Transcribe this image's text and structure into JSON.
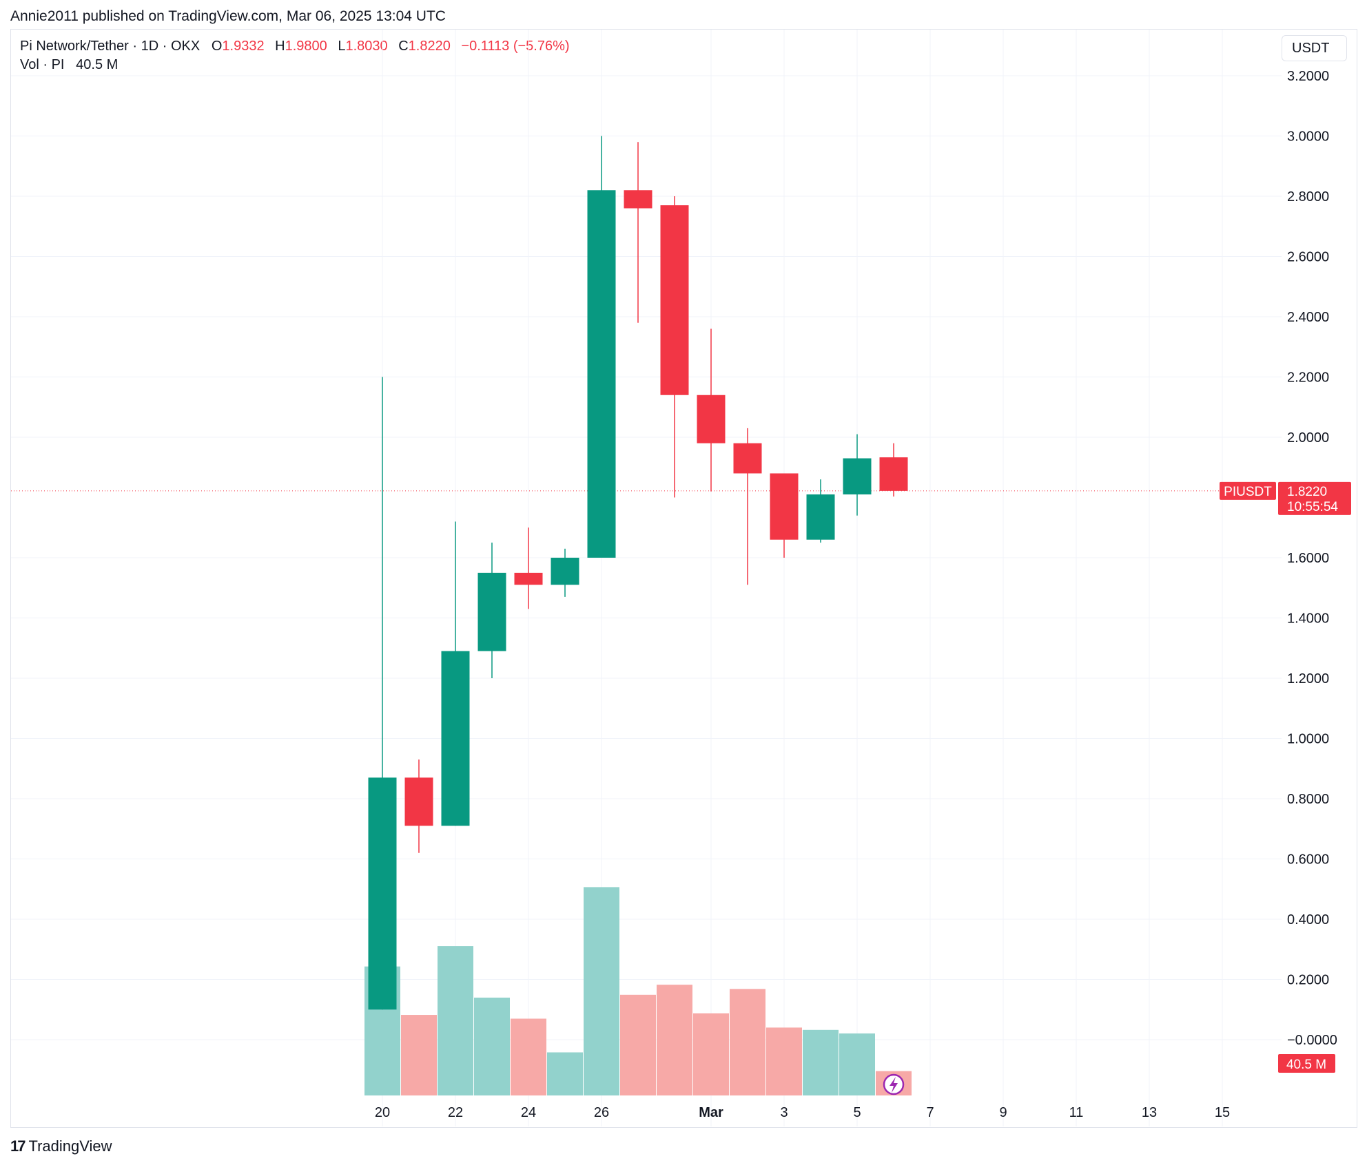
{
  "header": {
    "publish_line": "Annie2011 published on TradingView.com, Mar 06, 2025 13:04 UTC"
  },
  "legend": {
    "symbol_line": "Pi Network/Tether · 1D · OKX",
    "o_label": "O",
    "o_value": "1.9332",
    "h_label": "H",
    "h_value": "1.9800",
    "l_label": "L",
    "l_value": "1.8030",
    "c_label": "C",
    "c_value": "1.8220",
    "change": "−0.1113 (−5.76%)",
    "vol_label": "Vol · PI",
    "vol_value": "40.5 M"
  },
  "currency_button": "USDT",
  "footer": {
    "logo": "17",
    "brand": "TradingView"
  },
  "colors": {
    "up": "#089981",
    "down": "#f23645",
    "vol_up": "#92d2cc",
    "vol_down": "#f7a9a7",
    "grid": "#f0f3fa",
    "price_line": "#f23645"
  },
  "chart_data": {
    "type": "candlestick",
    "price_axis": {
      "ticks": [
        "3.2000",
        "3.0000",
        "2.8000",
        "2.6000",
        "2.4000",
        "2.2000",
        "2.0000",
        "1.6000",
        "1.4000",
        "1.2000",
        "1.0000",
        "0.8000",
        "0.6000",
        "0.4000",
        "0.2000",
        "−0.0000"
      ],
      "range": [
        -0.19,
        3.28
      ]
    },
    "time_axis": {
      "ticks": [
        "20",
        "22",
        "24",
        "26",
        "Mar",
        "3",
        "5",
        "7",
        "9",
        "11",
        "13",
        "15"
      ]
    },
    "candles": [
      {
        "date": "Feb 20",
        "open": 0.1,
        "high": 2.2,
        "low": 0.1,
        "close": 0.87
      },
      {
        "date": "Feb 21",
        "open": 0.87,
        "high": 0.93,
        "low": 0.62,
        "close": 0.71
      },
      {
        "date": "Feb 22",
        "open": 0.71,
        "high": 1.72,
        "low": 0.71,
        "close": 1.29
      },
      {
        "date": "Feb 23",
        "open": 1.29,
        "high": 1.65,
        "low": 1.2,
        "close": 1.55
      },
      {
        "date": "Feb 24",
        "open": 1.55,
        "high": 1.7,
        "low": 1.43,
        "close": 1.51
      },
      {
        "date": "Feb 25",
        "open": 1.51,
        "high": 1.63,
        "low": 1.47,
        "close": 1.6
      },
      {
        "date": "Feb 26",
        "open": 1.6,
        "high": 3.0,
        "low": 1.6,
        "close": 2.82
      },
      {
        "date": "Feb 27",
        "open": 2.82,
        "high": 2.98,
        "low": 2.38,
        "close": 2.76
      },
      {
        "date": "Feb 28",
        "open": 2.77,
        "high": 2.8,
        "low": 1.8,
        "close": 2.14
      },
      {
        "date": "Mar 1",
        "open": 2.14,
        "high": 2.36,
        "low": 1.82,
        "close": 1.98
      },
      {
        "date": "Mar 2",
        "open": 1.98,
        "high": 2.03,
        "low": 1.51,
        "close": 1.88
      },
      {
        "date": "Mar 3",
        "open": 1.88,
        "high": 1.88,
        "low": 1.6,
        "close": 1.66
      },
      {
        "date": "Mar 4",
        "open": 1.66,
        "high": 1.86,
        "low": 1.65,
        "close": 1.81
      },
      {
        "date": "Mar 5",
        "open": 1.81,
        "high": 2.01,
        "low": 1.74,
        "close": 1.93
      },
      {
        "date": "Mar 6",
        "open": 1.9332,
        "high": 1.98,
        "low": 1.803,
        "close": 1.822
      }
    ],
    "volume": {
      "unit": "relative",
      "values": [
        0.551,
        0.344,
        0.638,
        0.418,
        0.328,
        0.184,
        0.89,
        0.43,
        0.473,
        0.351,
        0.455,
        0.29,
        0.28,
        0.265,
        0.104
      ],
      "direction": [
        "up",
        "down",
        "up",
        "up",
        "down",
        "up",
        "up",
        "down",
        "down",
        "down",
        "down",
        "down",
        "up",
        "up",
        "down"
      ]
    },
    "last_price": {
      "symbol": "PIUSDT",
      "price": "1.8220",
      "value": 1.822,
      "countdown": "10:55:54"
    },
    "volume_tag": "40.5 M",
    "grid": true
  }
}
